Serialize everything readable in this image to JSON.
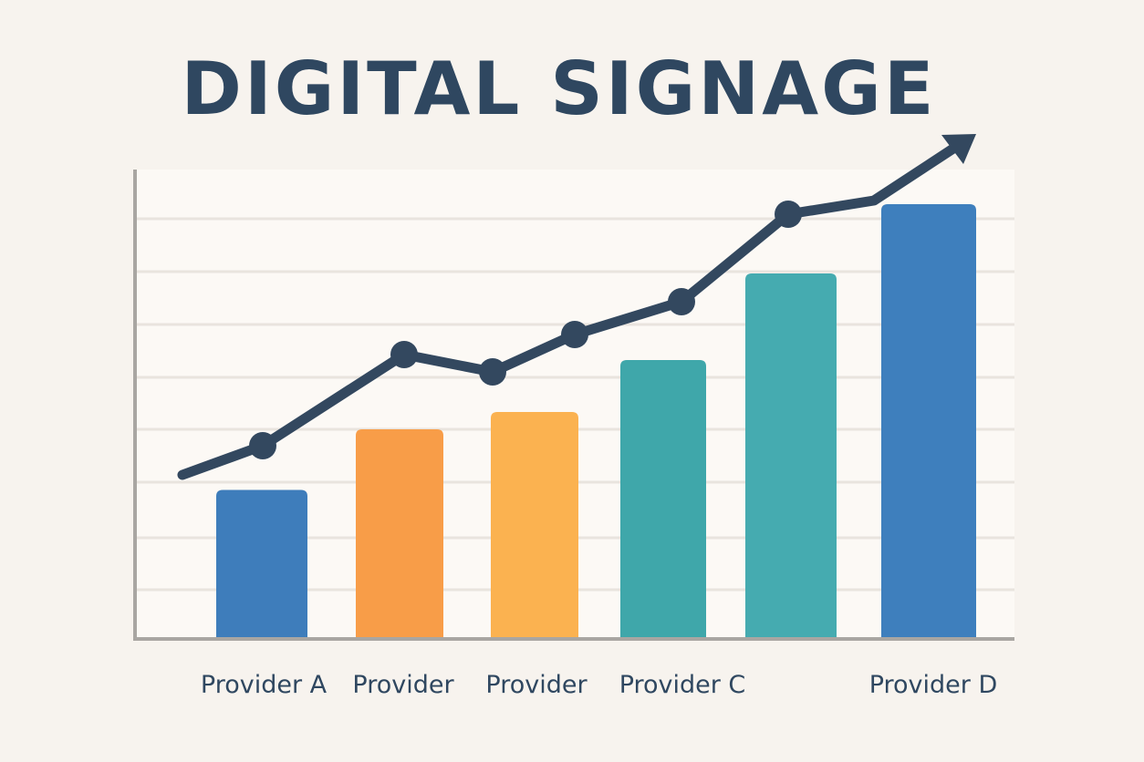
{
  "chart_data": {
    "type": "bar",
    "title": "DIGITAL SIGNAGE",
    "categories": [
      "Provider A",
      "Provider",
      "Provider",
      "Provider C",
      "",
      "Provider D"
    ],
    "values": [
      17,
      24,
      26,
      32,
      42,
      50
    ],
    "bar_colors": [
      "#3e7dbb",
      "#f89d48",
      "#fbb250",
      "#3fa7aa",
      "#45abb0",
      "#3e7fbd"
    ],
    "trend_line": {
      "color": "#33485f",
      "x_positions": [
        0,
        0.5,
        1.0,
        1.5,
        2.0,
        2.5,
        3.0,
        3.5,
        4.5
      ],
      "values": [
        18.5,
        21.5,
        31.5,
        29,
        34,
        38,
        47,
        48.5,
        56
      ],
      "markers": [
        false,
        true,
        true,
        true,
        true,
        true,
        true,
        false,
        false
      ],
      "arrow_end": true
    },
    "ylim": [
      0,
      54
    ],
    "grid": true,
    "xlabel": "",
    "ylabel": ""
  }
}
